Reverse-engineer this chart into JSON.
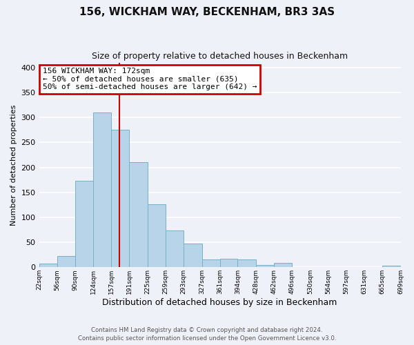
{
  "title": "156, WICKHAM WAY, BECKENHAM, BR3 3AS",
  "subtitle": "Size of property relative to detached houses in Beckenham",
  "xlabel": "Distribution of detached houses by size in Beckenham",
  "ylabel": "Number of detached properties",
  "bar_color": "#b8d4e8",
  "bar_edge_color": "#7aafc8",
  "background_color": "#eef2f8",
  "grid_color": "#ffffff",
  "annotation_text": "156 WICKHAM WAY: 172sqm\n← 50% of detached houses are smaller (635)\n50% of semi-detached houses are larger (642) →",
  "vline_x": 172,
  "vline_color": "#cc0000",
  "footer_line1": "Contains HM Land Registry data © Crown copyright and database right 2024.",
  "footer_line2": "Contains public sector information licensed under the Open Government Licence v3.0.",
  "bin_edges": [
    22,
    56,
    90,
    124,
    157,
    191,
    225,
    259,
    293,
    327,
    361,
    394,
    428,
    462,
    496,
    530,
    564,
    597,
    631,
    665,
    699
  ],
  "bin_heights": [
    8,
    22,
    173,
    310,
    276,
    211,
    126,
    74,
    47,
    16,
    17,
    15,
    4,
    9,
    1,
    0,
    1,
    0,
    0,
    3
  ],
  "ylim": [
    0,
    410
  ],
  "yticks": [
    0,
    50,
    100,
    150,
    200,
    250,
    300,
    350,
    400
  ],
  "annotation_box_color": "#cc0000",
  "annotation_bg": "#ffffff",
  "title_fontsize": 11,
  "subtitle_fontsize": 9,
  "ylabel_fontsize": 8,
  "xlabel_fontsize": 9,
  "ytick_fontsize": 8,
  "xtick_fontsize": 6.5
}
